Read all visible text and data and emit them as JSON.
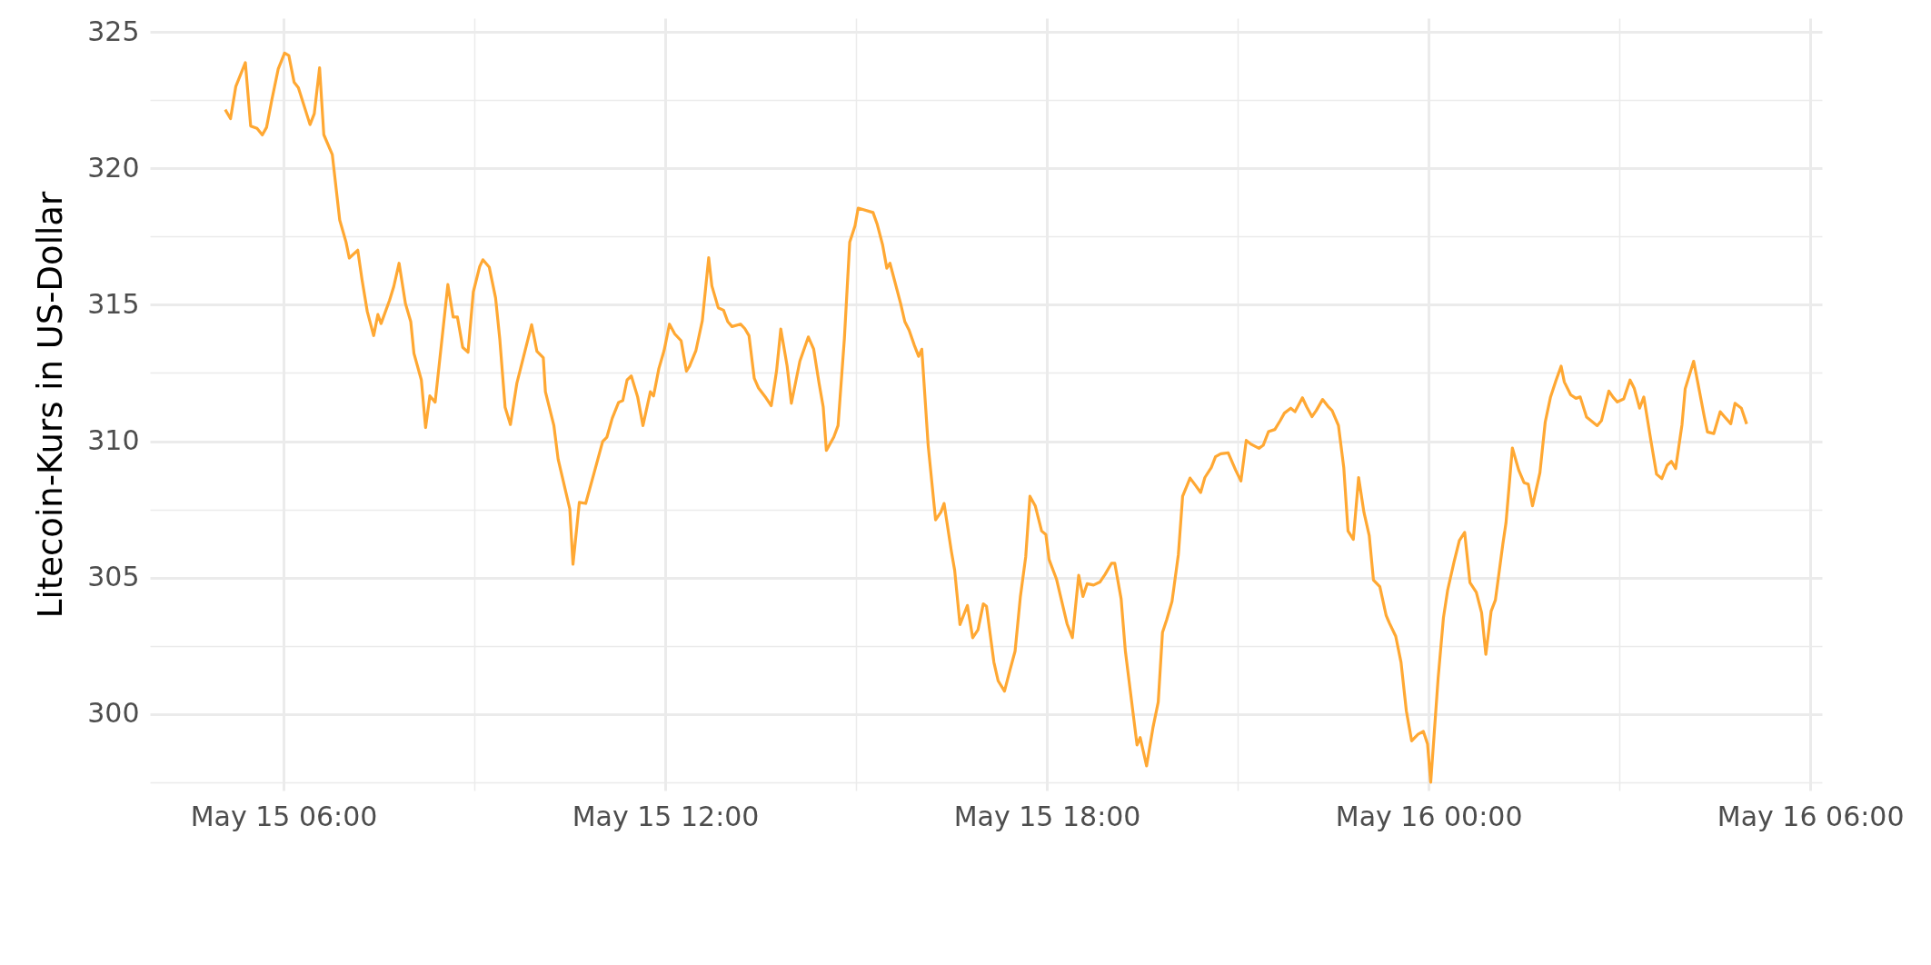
{
  "chart_data": {
    "type": "line",
    "ylabel": "Litecoin-Kurs in US-Dollar",
    "x": [
      "--05-15T05:05",
      "--05-15T05:10",
      "--05-15T05:15",
      "--05-15T05:24",
      "--05-15T05:29",
      "--05-15T05:35",
      "--05-15T05:40",
      "--05-15T05:44",
      "--05-15T05:49",
      "--05-15T05:55",
      "--05-15T06:01",
      "--05-15T06:05",
      "--05-15T06:10",
      "--05-15T06:14",
      "--05-15T06:25",
      "--05-15T06:29",
      "--05-15T06:34",
      "--05-15T06:38",
      "--05-15T06:46",
      "--05-15T06:53",
      "--05-15T06:59",
      "--05-15T07:02",
      "--05-15T07:10",
      "--05-15T07:14",
      "--05-15T07:19",
      "--05-15T07:25",
      "--05-15T07:29",
      "--05-15T07:32",
      "--05-15T07:40",
      "--05-15T07:44",
      "--05-15T07:49",
      "--05-15T07:55",
      "--05-15T08:00",
      "--05-15T08:03",
      "--05-15T08:10",
      "--05-15T08:14",
      "--05-15T08:18",
      "--05-15T08:23",
      "--05-15T08:35",
      "--05-15T08:40",
      "--05-15T08:44",
      "--05-15T08:49",
      "--05-15T08:54",
      "--05-15T08:59",
      "--05-15T09:05",
      "--05-15T09:08",
      "--05-15T09:14",
      "--05-15T09:20",
      "--05-15T09:24",
      "--05-15T09:29",
      "--05-15T09:34",
      "--05-15T09:40",
      "--05-15T09:54",
      "--05-15T09:59",
      "--05-15T10:05",
      "--05-15T10:07",
      "--05-15T10:15",
      "--05-15T10:19",
      "--05-15T10:30",
      "--05-15T10:33",
      "--05-15T10:39",
      "--05-15T10:45",
      "--05-15T10:53",
      "--05-15T11:01",
      "--05-15T11:05",
      "--05-15T11:10",
      "--05-15T11:16",
      "--05-15T11:20",
      "--05-15T11:24",
      "--05-15T11:28",
      "--05-15T11:34",
      "--05-15T11:39",
      "--05-15T11:46",
      "--05-15T11:49",
      "--05-15T11:54",
      "--05-15T11:59",
      "--05-15T12:04",
      "--05-15T12:09",
      "--05-15T12:15",
      "--05-15T12:20",
      "--05-15T12:23",
      "--05-15T12:29",
      "--05-15T12:35",
      "--05-15T12:41",
      "--05-15T12:44",
      "--05-15T12:50",
      "--05-15T12:55",
      "--05-15T12:59",
      "--05-15T13:03",
      "--05-15T13:11",
      "--05-15T13:15",
      "--05-15T13:19",
      "--05-15T13:24",
      "--05-15T13:28",
      "--05-15T13:35",
      "--05-15T13:40",
      "--05-15T13:45",
      "--05-15T13:49",
      "--05-15T13:55",
      "--05-15T13:59",
      "--05-15T14:07",
      "--05-15T14:15",
      "--05-15T14:20",
      "--05-15T14:25",
      "--05-15T14:29",
      "--05-15T14:32",
      "--05-15T14:39",
      "--05-15T14:43",
      "--05-15T14:49",
      "--05-15T14:54",
      "--05-15T14:59",
      "--05-15T15:02",
      "--05-15T15:16",
      "--05-15T15:20",
      "--05-15T15:25",
      "--05-15T15:29",
      "--05-15T15:32",
      "--05-15T15:42",
      "--05-15T15:46",
      "--05-15T15:50",
      "--05-15T15:55",
      "--05-15T15:59",
      "--05-15T16:02",
      "--05-15T16:08",
      "--05-15T16:15",
      "--05-15T16:20",
      "--05-15T16:23",
      "--05-15T16:30",
      "--05-15T16:33",
      "--05-15T16:38",
      "--05-15T16:45",
      "--05-15T16:50",
      "--05-15T16:55",
      "--05-15T17:00",
      "--05-15T17:03",
      "--05-15T17:10",
      "--05-15T17:14",
      "--05-15T17:20",
      "--05-15T17:25",
      "--05-15T17:30",
      "--05-15T17:35",
      "--05-15T17:40",
      "--05-15T17:44",
      "--05-15T17:49",
      "--05-15T17:55",
      "--05-15T17:59",
      "--05-15T18:02",
      "--05-15T18:09",
      "--05-15T18:19",
      "--05-15T18:24",
      "--05-15T18:30",
      "--05-15T18:34",
      "--05-15T18:38",
      "--05-15T18:44",
      "--05-15T18:50",
      "--05-15T18:55",
      "--05-15T19:01",
      "--05-15T19:04",
      "--05-15T19:10",
      "--05-15T19:14",
      "--05-15T19:25",
      "--05-15T19:28",
      "--05-15T19:34",
      "--05-15T19:40",
      "--05-15T19:45",
      "--05-15T19:49",
      "--05-15T19:53",
      "--05-15T19:58",
      "--05-15T20:04",
      "--05-15T20:08",
      "--05-15T20:15",
      "--05-15T20:20",
      "--05-15T20:25",
      "--05-15T20:29",
      "--05-15T20:35",
      "--05-15T20:39",
      "--05-15T20:44",
      "--05-15T20:51",
      "--05-15T20:58",
      "--05-15T21:03",
      "--05-15T21:08",
      "--05-15T21:13",
      "--05-15T21:20",
      "--05-15T21:24",
      "--05-15T21:29",
      "--05-15T21:35",
      "--05-15T21:40",
      "--05-15T21:44",
      "--05-15T21:50",
      "--05-15T21:54",
      "--05-15T22:01",
      "--05-15T22:05",
      "--05-15T22:10",
      "--05-15T22:14",
      "--05-15T22:20",
      "--05-15T22:25",
      "--05-15T22:29",
      "--05-15T22:35",
      "--05-15T22:40",
      "--05-15T22:44",
      "--05-15T22:49",
      "--05-15T22:54",
      "--05-15T22:59",
      "--05-15T23:04",
      "--05-15T23:08",
      "--05-15T23:14",
      "--05-15T23:20",
      "--05-15T23:23",
      "--05-15T23:29",
      "--05-15T23:34",
      "--05-15T23:39",
      "--05-15T23:44",
      "--05-15T23:50",
      "--05-15T23:55",
      "--05-15T23:59",
      "--05-16T00:02",
      "--05-16T00:09",
      "--05-16T00:14",
      "--05-16T00:18",
      "--05-16T00:24",
      "--05-16T00:29",
      "--05-16T00:34",
      "--05-16T00:39",
      "--05-16T00:45",
      "--05-16T00:50",
      "--05-16T00:54",
      "--05-16T00:59",
      "--05-16T01:03",
      "--05-16T01:10",
      "--05-16T01:13",
      "--05-16T01:19",
      "--05-16T01:25",
      "--05-16T01:30",
      "--05-16T01:34",
      "--05-16T01:38",
      "--05-16T01:45",
      "--05-16T01:50",
      "--05-16T01:55",
      "--05-16T02:00",
      "--05-16T02:05",
      "--05-16T02:08",
      "--05-16T02:14",
      "--05-16T02:19",
      "--05-16T02:23",
      "--05-16T02:29",
      "--05-16T02:39",
      "--05-16T02:43",
      "--05-16T02:50",
      "--05-16T02:54",
      "--05-16T02:58",
      "--05-16T03:04",
      "--05-16T03:10",
      "--05-16T03:14",
      "--05-16T03:19",
      "--05-16T03:23",
      "--05-16T03:30",
      "--05-16T03:35",
      "--05-16T03:40",
      "--05-16T03:45",
      "--05-16T03:49",
      "--05-16T03:53",
      "--05-16T03:59",
      "--05-16T04:02",
      "--05-16T04:10",
      "--05-16T04:14",
      "--05-16T04:20",
      "--05-16T04:23",
      "--05-16T04:29",
      "--05-16T04:35",
      "--05-16T04:39",
      "--05-16T04:45",
      "--05-16T04:49",
      "--05-16T04:55",
      "--05-16T05:00"
    ],
    "series": [
      {
        "color": "#ffa833",
        "values": [
          322.15,
          321.82,
          323.0,
          323.87,
          321.55,
          321.46,
          321.22,
          321.5,
          322.51,
          323.64,
          324.22,
          324.13,
          323.15,
          322.95,
          321.6,
          322.0,
          323.68,
          321.23,
          320.5,
          318.1,
          317.29,
          316.71,
          317.0,
          315.93,
          314.75,
          313.87,
          314.64,
          314.31,
          315.16,
          315.67,
          316.52,
          315.04,
          314.38,
          313.22,
          312.24,
          310.5,
          311.66,
          311.43,
          315.74,
          314.55,
          314.55,
          313.44,
          313.26,
          315.47,
          316.4,
          316.65,
          316.38,
          315.25,
          313.73,
          311.24,
          310.61,
          312.11,
          314.27,
          313.29,
          313.06,
          311.81,
          310.57,
          309.34,
          307.52,
          305.49,
          307.76,
          307.72,
          308.85,
          309.99,
          310.15,
          310.84,
          311.42,
          311.49,
          312.24,
          312.39,
          311.62,
          310.57,
          311.81,
          311.66,
          312.66,
          313.33,
          314.29,
          313.93,
          313.68,
          312.57,
          312.75,
          313.33,
          314.42,
          316.72,
          315.69,
          314.89,
          314.8,
          314.38,
          314.2,
          314.29,
          314.13,
          313.87,
          312.3,
          311.95,
          311.59,
          311.3,
          312.57,
          314.11,
          312.75,
          311.39,
          312.93,
          313.82,
          313.38,
          312.15,
          311.26,
          309.66,
          310.15,
          310.57,
          313.77,
          317.29,
          317.89,
          318.54,
          318.38,
          317.94,
          317.2,
          316.34,
          316.52,
          315.05,
          314.38,
          314.07,
          313.51,
          313.11,
          313.37,
          309.85,
          307.12,
          307.4,
          307.72,
          305.94,
          305.27,
          303.28,
          303.98,
          302.8,
          303.09,
          304.04,
          303.95,
          301.9,
          301.22,
          300.84,
          301.59,
          302.31,
          304.31,
          305.76,
          307.98,
          307.63,
          306.71,
          306.58,
          305.67,
          304.95,
          303.31,
          302.8,
          305.09,
          304.31,
          304.78,
          304.73,
          304.84,
          305.13,
          305.53,
          305.53,
          304.22,
          302.31,
          298.87,
          299.14,
          298.1,
          299.5,
          300.44,
          302.99,
          303.46,
          304.13,
          305.85,
          307.98,
          308.65,
          308.39,
          308.12,
          308.67,
          309.03,
          309.43,
          309.54,
          309.57,
          308.94,
          308.54,
          310.03,
          309.88,
          309.74,
          309.85,
          310.35,
          310.43,
          310.75,
          311.03,
          311.21,
          311.08,
          311.59,
          311.26,
          310.9,
          311.12,
          311.53,
          311.28,
          311.12,
          310.57,
          309.03,
          306.71,
          306.4,
          308.67,
          307.4,
          306.54,
          304.91,
          304.67,
          303.61,
          303.34,
          302.85,
          301.9,
          300.12,
          299.02,
          299.26,
          299.37,
          298.91,
          297.5,
          301.32,
          303.53,
          304.55,
          305.58,
          306.36,
          306.66,
          304.82,
          304.46,
          303.71,
          302.19,
          303.77,
          304.18,
          306.22,
          307.01,
          309.75,
          308.94,
          308.48,
          308.43,
          307.63,
          308.85,
          310.7,
          311.62,
          312.21,
          312.75,
          312.17,
          311.7,
          311.57,
          311.62,
          310.88,
          310.57,
          310.75,
          311.84,
          311.61,
          311.44,
          311.55,
          312.24,
          311.93,
          311.21,
          311.62,
          309.94,
          308.79,
          308.63,
          309.12,
          309.26,
          309.0,
          310.61,
          311.92,
          312.93,
          312.13,
          310.9,
          310.34,
          310.28,
          311.08,
          310.9,
          310.64,
          311.39,
          311.21,
          310.63
        ]
      }
    ],
    "xlim": [
      "--05-15T03:54",
      "--05-16T06:11"
    ],
    "xticks": [
      {
        "value": "--05-15T06:00",
        "label": "May 15 06:00"
      },
      {
        "value": "--05-15T09:00",
        "label": null
      },
      {
        "value": "--05-15T12:00",
        "label": "May 15 12:00"
      },
      {
        "value": "--05-15T15:00",
        "label": null
      },
      {
        "value": "--05-15T18:00",
        "label": "May 15 18:00"
      },
      {
        "value": "--05-15T21:00",
        "label": null
      },
      {
        "value": "--05-16T00:00",
        "label": "May 16 00:00"
      },
      {
        "value": "--05-16T03:00",
        "label": null
      },
      {
        "value": "--05-16T06:00",
        "label": "May 16 06:00"
      }
    ],
    "ylim": [
      297.2,
      325.5
    ],
    "yticks": [
      {
        "value": 297.5,
        "label": null
      },
      300,
      {
        "value": 302.5,
        "label": null
      },
      305,
      {
        "value": 307.5,
        "label": null
      },
      310,
      {
        "value": 312.5,
        "label": null
      },
      315,
      {
        "value": 317.5,
        "label": null
      },
      320,
      {
        "value": 322.5,
        "label": null
      },
      325
    ],
    "grid": true
  }
}
